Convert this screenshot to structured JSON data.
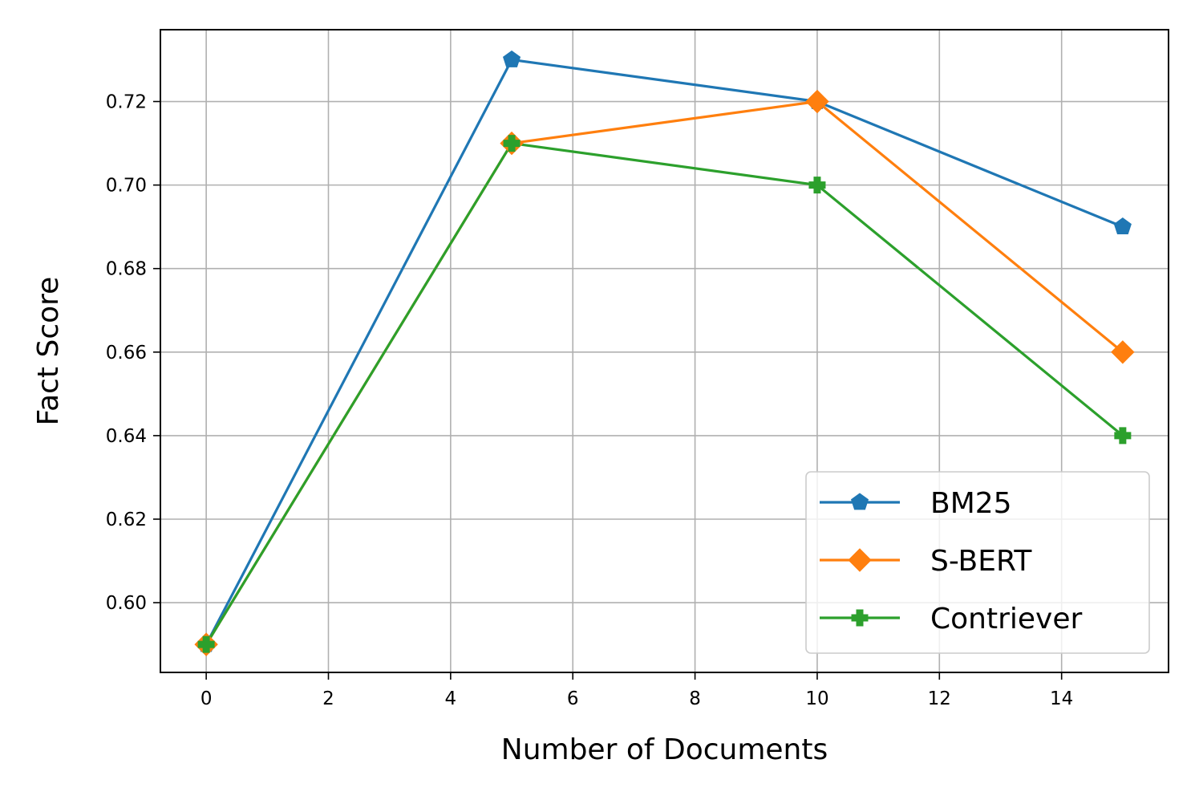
{
  "chart_data": {
    "type": "line",
    "title": "",
    "xlabel": "Number of Documents",
    "ylabel": "Fact Score",
    "x": [
      0,
      5,
      10,
      15
    ],
    "xlim": [
      -0.75,
      15.75
    ],
    "ylim": [
      0.5833,
      0.7372
    ],
    "xticks": [
      0,
      2,
      4,
      6,
      8,
      10,
      12,
      14
    ],
    "yticks": [
      0.6,
      0.62,
      0.64,
      0.66,
      0.68,
      0.7,
      0.72
    ],
    "xtick_labels": [
      "0",
      "2",
      "4",
      "6",
      "8",
      "10",
      "12",
      "14"
    ],
    "ytick_labels": [
      "0.60",
      "0.62",
      "0.64",
      "0.66",
      "0.68",
      "0.70",
      "0.72"
    ],
    "grid": true,
    "legend_position": "lower-right",
    "series": [
      {
        "name": "BM25",
        "values": [
          0.59,
          0.73,
          0.72,
          0.69
        ],
        "color": "#1f77b4",
        "marker": "pentagon"
      },
      {
        "name": "S-BERT",
        "values": [
          0.59,
          0.71,
          0.72,
          0.66
        ],
        "color": "#ff7f0e",
        "marker": "diamond"
      },
      {
        "name": "Contriever",
        "values": [
          0.59,
          0.71,
          0.7,
          0.64
        ],
        "color": "#2ca02c",
        "marker": "plus"
      }
    ]
  }
}
